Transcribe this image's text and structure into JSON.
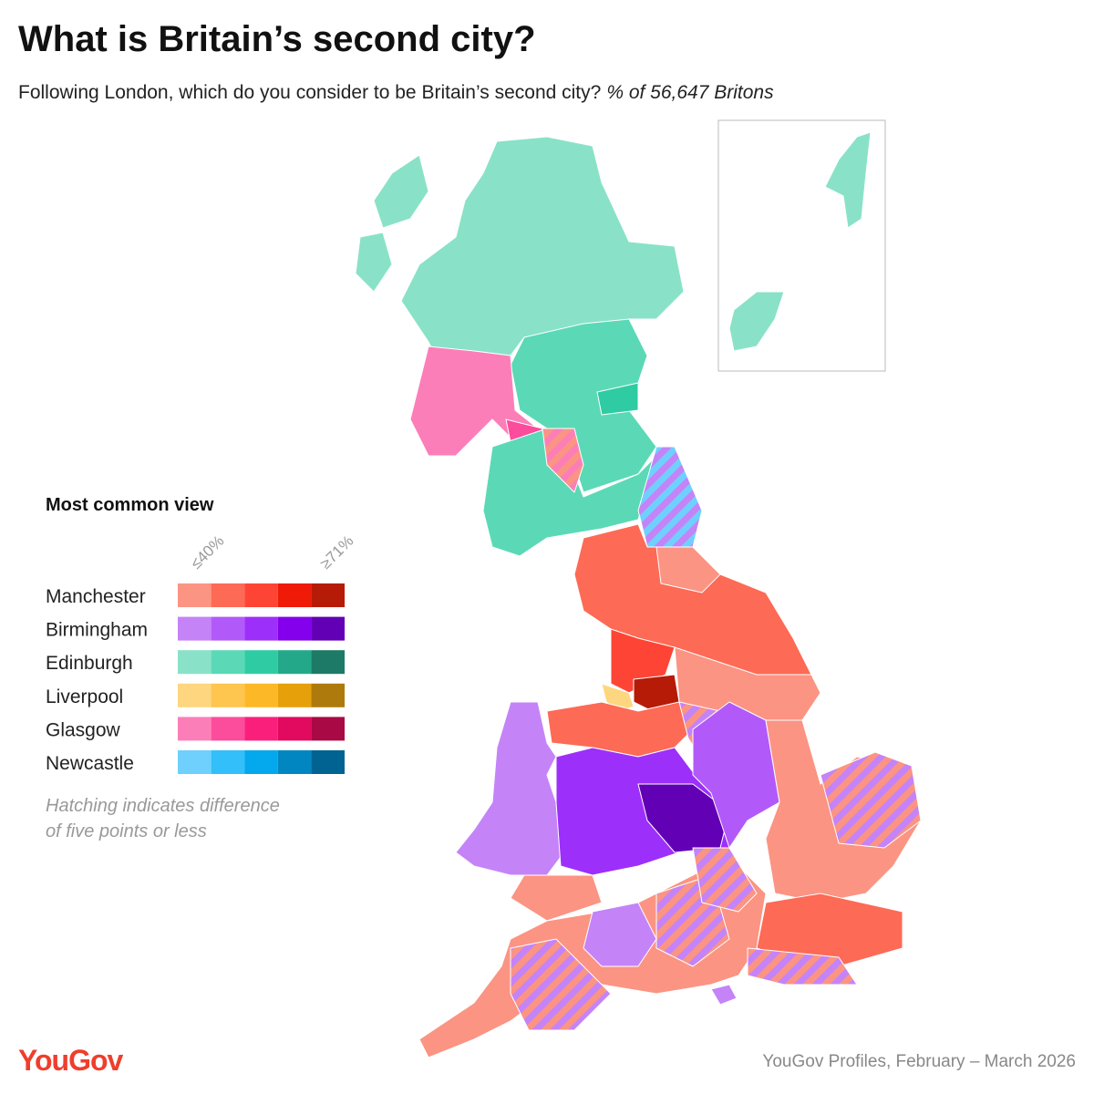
{
  "title": "What is Britain’s second city?",
  "subtitle": "Following London, which do you consider to be Britain’s second city?",
  "subtitle_note": "% of 56,647 Britons",
  "legend": {
    "title": "Most common view",
    "scale_low": "≤40%",
    "scale_high": "≥71%",
    "items": [
      {
        "name": "Manchester",
        "colors": [
          "#fb9483",
          "#fd6a55",
          "#fe4535",
          "#ef1b08",
          "#b51b06"
        ]
      },
      {
        "name": "Birmingham",
        "colors": [
          "#c583f8",
          "#b15af9",
          "#9d2ffa",
          "#8400ec",
          "#6200b5"
        ]
      },
      {
        "name": "Edinburgh",
        "colors": [
          "#89e2c8",
          "#5bd9b6",
          "#2fcca3",
          "#23a98a",
          "#1d7a66"
        ]
      },
      {
        "name": "Liverpool",
        "colors": [
          "#fdd67f",
          "#fec54f",
          "#fdb827",
          "#e6a00a",
          "#ae7a0b"
        ]
      },
      {
        "name": "Glasgow",
        "colors": [
          "#fc7eb8",
          "#fc4c9c",
          "#fb1f7c",
          "#e20a5e",
          "#a90a45"
        ]
      },
      {
        "name": "Newcastle",
        "colors": [
          "#6fd0fd",
          "#33bff9",
          "#04a8ec",
          "#0286c1",
          "#016392"
        ]
      }
    ],
    "note": [
      "Hatching indicates difference",
      "of five points or less"
    ]
  },
  "logo": "YouGov",
  "source": "YouGov Profiles, February – March 2026"
}
